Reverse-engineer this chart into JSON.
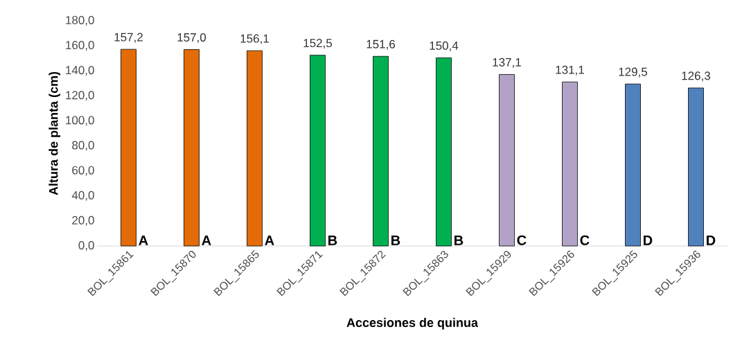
{
  "chart_data": {
    "type": "bar",
    "xlabel": "Accesiones de quinua",
    "ylabel": "Altura de planta (cm)",
    "categories": [
      "BOL_15861",
      "BOL_15870",
      "BOL_15865",
      "BOL_15871",
      "BOL_15872",
      "BOL_15863",
      "BOL_15929",
      "BOL_15926",
      "BOL_15925",
      "BOL_15936"
    ],
    "values": [
      157.2,
      157.0,
      156.1,
      152.5,
      151.6,
      150.4,
      137.1,
      131.1,
      129.5,
      126.3
    ],
    "colors": [
      "#e36c09",
      "#e36c09",
      "#e36c09",
      "#00b050",
      "#00b050",
      "#00b050",
      "#b3a2c7",
      "#b3a2c7",
      "#4f81bd",
      "#4f81bd"
    ],
    "value_labels": [
      "157,2",
      "157,0",
      "156,1",
      "152,5",
      "151,6",
      "150,4",
      "137,1",
      "131,1",
      "129,5",
      "126,3"
    ],
    "ylim": [
      0,
      180
    ],
    "yticks": [
      {
        "value": 0,
        "label": "0,0"
      },
      {
        "value": 20,
        "label": "20,0"
      },
      {
        "value": 40,
        "label": "40,0"
      },
      {
        "value": 60,
        "label": "60,0"
      },
      {
        "value": 80,
        "label": "80,0"
      },
      {
        "value": 100,
        "label": "100,0"
      },
      {
        "value": 120,
        "label": "120,0"
      },
      {
        "value": 140,
        "label": "140,0"
      },
      {
        "value": 160,
        "label": "160,0"
      },
      {
        "value": 180,
        "label": "180,0"
      }
    ],
    "grid": false,
    "annotations": [
      {
        "text": "A",
        "x": "BOL_15861",
        "y": 0
      },
      {
        "text": "A",
        "x": "BOL_15870",
        "y": 0
      },
      {
        "text": "A",
        "x": "BOL_15865",
        "y": 0
      },
      {
        "text": "B",
        "x": "BOL_15871",
        "y": 0
      },
      {
        "text": "B",
        "x": "BOL_15872",
        "y": 0
      },
      {
        "text": "B",
        "x": "BOL_15863",
        "y": 0
      },
      {
        "text": "C",
        "x": "BOL_15929",
        "y": 0
      },
      {
        "text": "C",
        "x": "BOL_15926",
        "y": 0
      },
      {
        "text": "D",
        "x": "BOL_15925",
        "y": 0
      },
      {
        "text": "D",
        "x": "BOL_15936",
        "y": 0
      }
    ]
  }
}
